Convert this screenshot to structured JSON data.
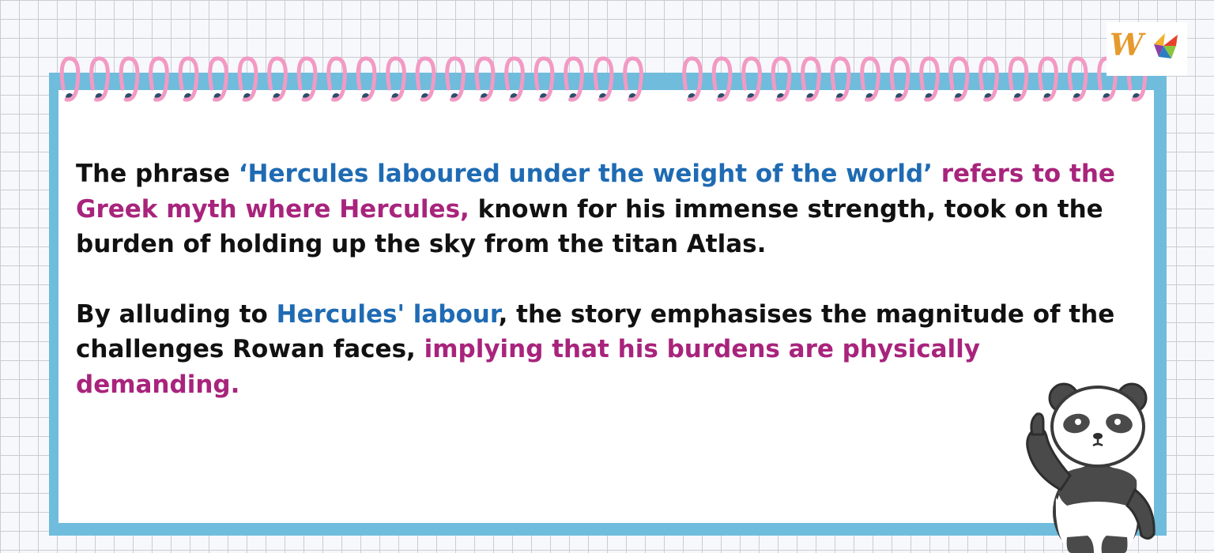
{
  "logo": {
    "text": "W",
    "icon": "windmill-logo-icon"
  },
  "paragraph1": {
    "s1": "The phrase ",
    "s2": "‘Hercules laboured under the weight of the world’",
    "s3": " ",
    "s4": "refers to the Greek myth where Hercules,",
    "s5": " known for his immense strength, took on the burden of holding up the sky from the titan Atlas."
  },
  "paragraph2": {
    "s1": "By alluding to ",
    "s2": "Hercules' labour",
    "s3": ", the story emphasises the magnitude of the challenges Rowan faces, ",
    "s4": "implying that his burdens are physically demanding."
  },
  "colors": {
    "frame": "#6fbcdc",
    "ring": "#f29ac4",
    "blue_text": "#1f6bb3",
    "magenta_text": "#a8247c"
  },
  "decorations": {
    "mascot": "panda-pointing-icon"
  }
}
